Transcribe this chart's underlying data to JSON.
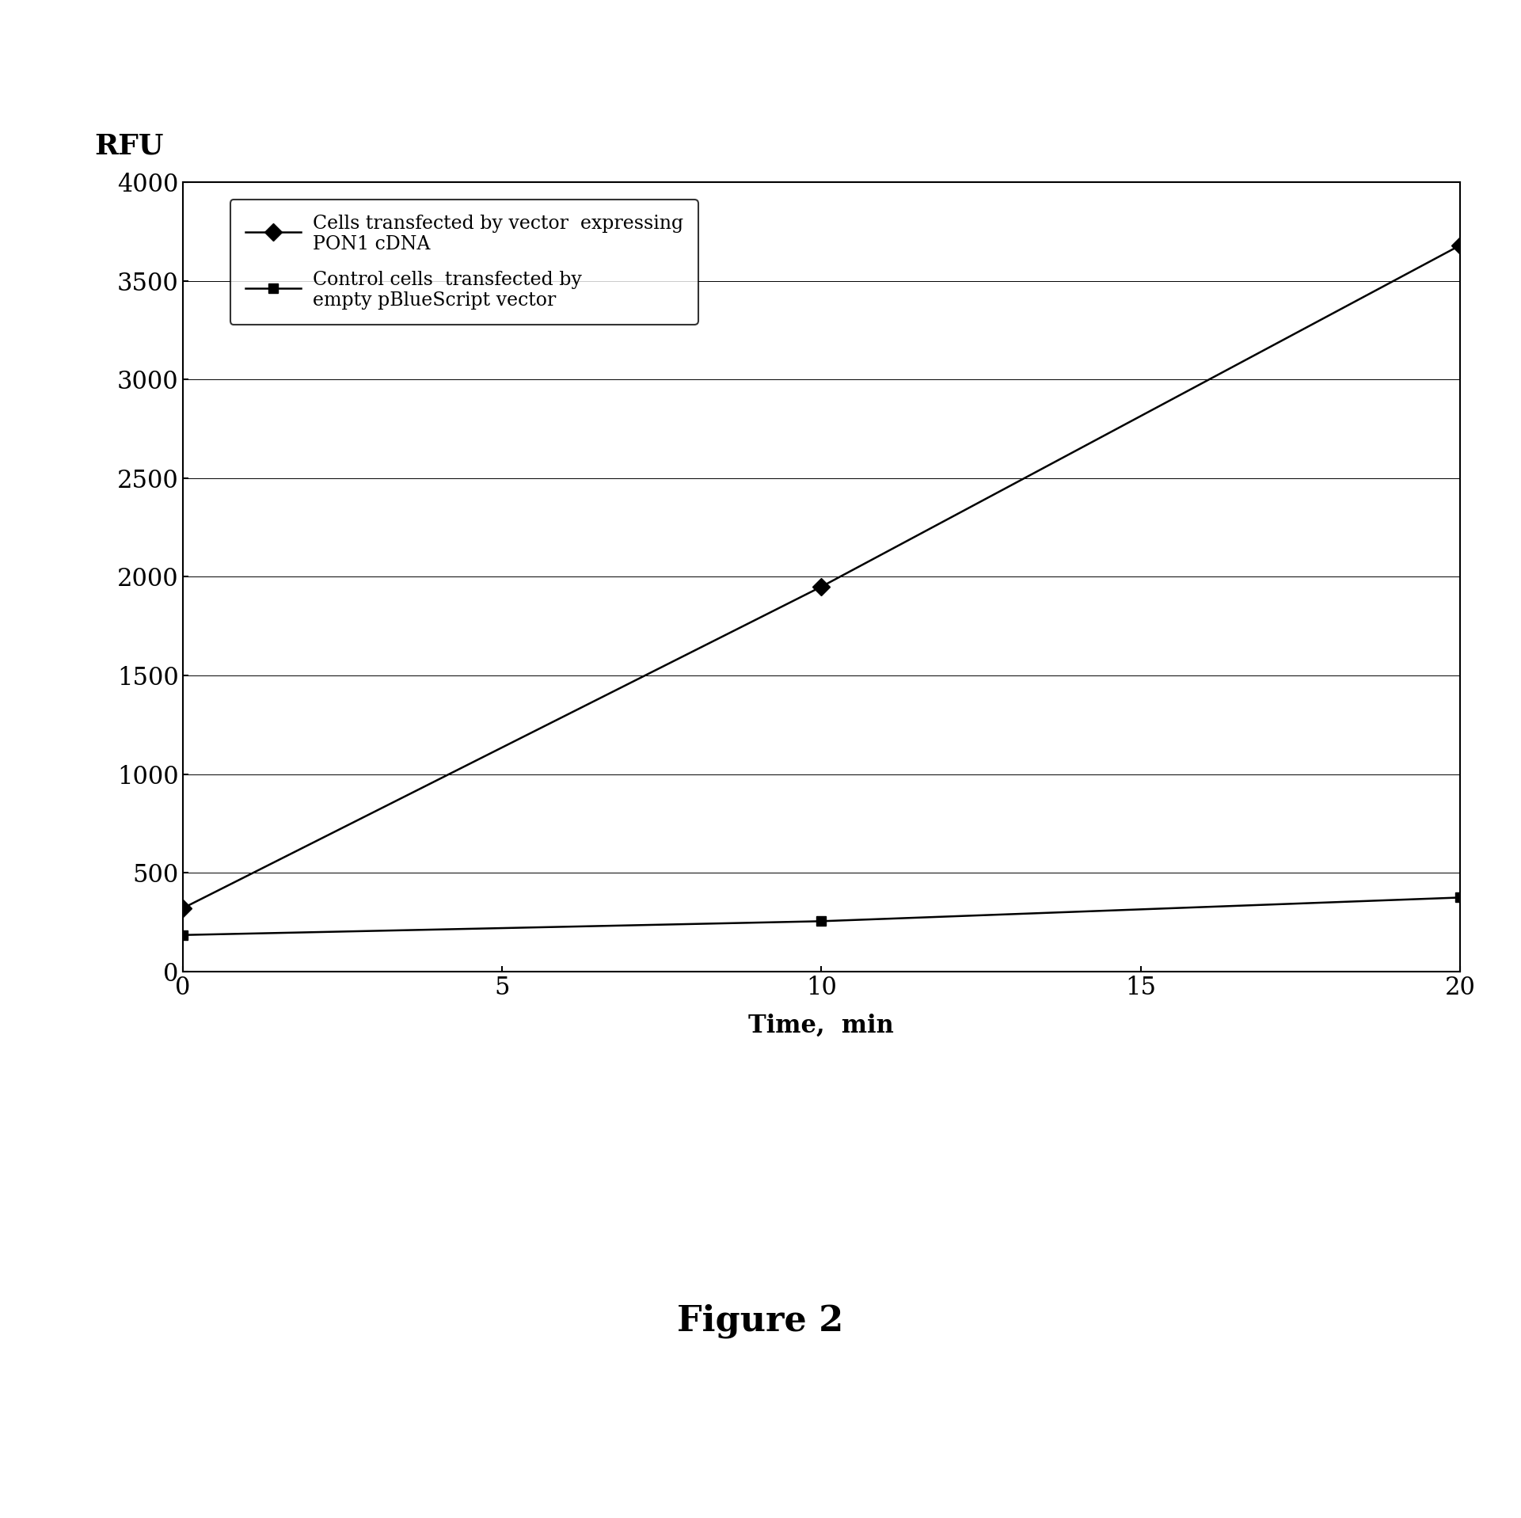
{
  "series1_x": [
    0,
    10,
    20
  ],
  "series1_y": [
    320,
    1950,
    3680
  ],
  "series2_x": [
    0,
    10,
    20
  ],
  "series2_y": [
    185,
    255,
    375
  ],
  "series1_label_line1": "Cells transfected by vector  expressing",
  "series1_label_line2": "PON1 cDNA",
  "series2_label_line1": "Control cells  transfected by",
  "series2_label_line2": "empty pBlueScript vector",
  "ylabel": "RFU",
  "xlabel": "Time,  min",
  "ylim": [
    0,
    4000
  ],
  "xlim": [
    0,
    20
  ],
  "yticks": [
    0,
    500,
    1000,
    1500,
    2000,
    2500,
    3000,
    3500,
    4000
  ],
  "xticks": [
    0,
    5,
    10,
    15,
    20
  ],
  "figure_caption": "Figure 2",
  "line_color": "#000000",
  "background_color": "#ffffff",
  "ylabel_fontsize": 26,
  "label_fontsize": 22,
  "tick_fontsize": 22,
  "legend_fontsize": 17,
  "caption_fontsize": 32
}
